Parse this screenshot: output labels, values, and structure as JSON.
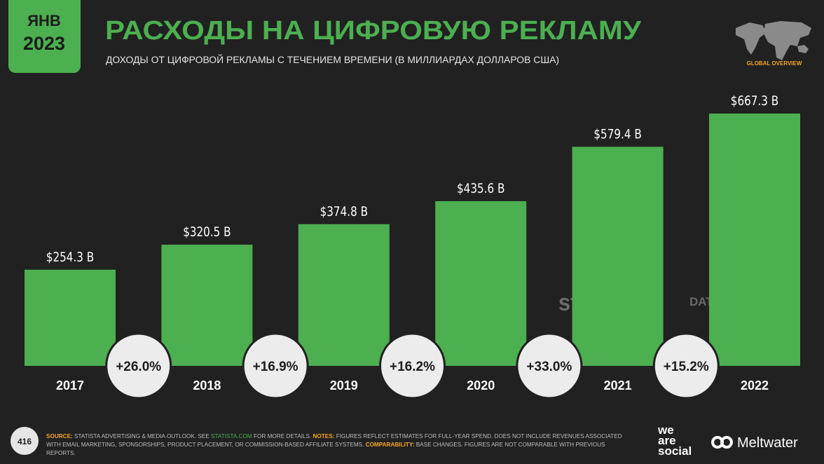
{
  "header": {
    "badge_month": "ЯНВ",
    "badge_year": "2023",
    "corner_label": "GLOBAL OVERVIEW",
    "page_number": "416"
  },
  "chart_data": {
    "type": "bar",
    "title": "РАСХОДЫ НА ЦИФРОВУЮ РЕКЛАМУ",
    "subtitle": "ДОХОДЫ ОТ ЦИФРОВОЙ РЕКЛАМЫ С ТЕЧЕНИЕМ ВРЕМЕНИ (В МИЛЛИАРДАХ ДОЛЛАРОВ США)",
    "categories": [
      "2017",
      "2018",
      "2019",
      "2020",
      "2021",
      "2022"
    ],
    "values": [
      254.3,
      320.5,
      374.8,
      435.6,
      579.4,
      667.3
    ],
    "value_labels": [
      "$254.3 B",
      "$320.5 B",
      "$374.8 B",
      "$435.6 B",
      "$579.4 B",
      "$667.3 B"
    ],
    "color": "#4caf50",
    "changes": [
      {
        "value": 26.0,
        "label": "+26.0%"
      },
      {
        "value": 16.9,
        "label": "+16.9%"
      },
      {
        "value": 16.2,
        "label": "+16.2%"
      },
      {
        "value": 33.0,
        "label": "+33.0%"
      },
      {
        "value": 15.2,
        "label": "+15.2%"
      }
    ],
    "watermarks": [
      "statista",
      "DATAREPORTAL"
    ]
  },
  "footer": {
    "parts": [
      {
        "text": "SOURCE:",
        "style": "label"
      },
      {
        "text": " STATISTA ADVERTISING & MEDIA OUTLOOK. SEE ",
        "style": "plain"
      },
      {
        "text": "STATISTA.COM",
        "style": "link"
      },
      {
        "text": " FOR MORE DETAILS. ",
        "style": "plain"
      },
      {
        "text": "NOTES:",
        "style": "label"
      },
      {
        "text": " FIGURES REFLECT ESTIMATES FOR FULL-YEAR SPEND. DOES NOT INCLUDE REVENUES ASSOCIATED WITH EMAIL MARKETING, SPONSORSHIPS, PRODUCT PLACEMENT, OR COMMISSION-BASED AFFILIATE SYSTEMS. ",
        "style": "plain"
      },
      {
        "text": "COMPARABILITY:",
        "style": "label"
      },
      {
        "text": " BASE CHANGES. FIGURES ARE NOT COMPARABLE WITH PREVIOUS REPORTS.",
        "style": "plain"
      }
    ],
    "brand_1": [
      "we",
      "are",
      "social"
    ],
    "brand_2": "Meltwater"
  }
}
